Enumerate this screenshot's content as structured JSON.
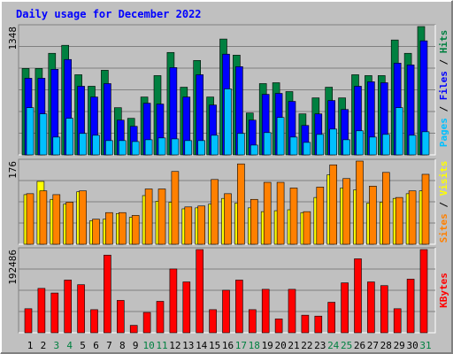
{
  "chart_data": {
    "type": "bar",
    "title": "Daily usage for December 2022",
    "categories": [
      "1",
      "2",
      "3",
      "4",
      "5",
      "6",
      "7",
      "8",
      "9",
      "10",
      "11",
      "12",
      "13",
      "14",
      "15",
      "16",
      "17",
      "18",
      "19",
      "20",
      "21",
      "22",
      "23",
      "24",
      "25",
      "26",
      "27",
      "28",
      "29",
      "30",
      "31"
    ],
    "category_colors": [
      "#000000",
      "#000000",
      "#008040",
      "#008040",
      "#000000",
      "#000000",
      "#000000",
      "#000000",
      "#000000",
      "#008040",
      "#008040",
      "#000000",
      "#000000",
      "#000000",
      "#000000",
      "#000000",
      "#008040",
      "#008040",
      "#000000",
      "#000000",
      "#000000",
      "#000000",
      "#000000",
      "#008040",
      "#008040",
      "#000000",
      "#000000",
      "#000000",
      "#000000",
      "#000000",
      "#008040"
    ],
    "legend_separator": " / ",
    "panels": [
      {
        "ylim": [
          0,
          1348
        ],
        "yticks": [
          1348
        ],
        "series": [
          {
            "name": "Hits",
            "color": "#008040",
            "values": [
              908,
              908,
              1067,
              1151,
              842,
              721,
              889,
              496,
              384,
              608,
              833,
              1076,
              711,
              992,
              608,
              1217,
              1048,
              440,
              749,
              758,
              665,
              431,
              599,
              711,
              599,
              842,
              833,
              833,
              1207,
              1067,
              1348
            ]
          },
          {
            "name": "Files",
            "color": "#0000ff",
            "values": [
              805,
              805,
              899,
              1002,
              721,
              608,
              749,
              365,
              300,
              543,
              534,
              917,
              608,
              842,
              524,
              1058,
              927,
              365,
              636,
              646,
              562,
              309,
              431,
              571,
              477,
              721,
              768,
              758,
              964,
              945,
              1198
            ]
          },
          {
            "name": "Pages",
            "color": "#00c0ff",
            "values": [
              496,
              431,
              187,
              384,
              225,
              206,
              150,
              150,
              140,
              159,
              178,
              168,
              150,
              150,
              206,
              693,
              225,
              103,
              234,
              393,
              187,
              131,
              215,
              271,
              159,
              253,
              187,
              215,
              496,
              206,
              243
            ]
          }
        ]
      },
      {
        "ylim": [
          0,
          176
        ],
        "yticks": [
          176
        ],
        "series": [
          {
            "name": "Visits",
            "color": "#ffff00",
            "values": [
              105,
              133,
              95,
              85,
              111,
              50,
              53,
              65,
              57,
              103,
              91,
              89,
              75,
              77,
              85,
              97,
              87,
              77,
              69,
              71,
              73,
              67,
              99,
              147,
              119,
              115,
              87,
              89,
              97,
              107,
              113
            ]
          },
          {
            "name": "Sites",
            "color": "#ff8000",
            "values": [
              107,
              113,
              105,
              89,
              113,
              53,
              67,
              67,
              61,
              117,
              117,
              154,
              79,
              81,
              137,
              107,
              170,
              95,
              131,
              131,
              119,
              69,
              121,
              168,
              139,
              176,
              123,
              152,
              99,
              113,
              148
            ]
          }
        ]
      },
      {
        "ylim": [
          0,
          192486
        ],
        "yticks": [
          192486
        ],
        "series": [
          {
            "name": "KBytes",
            "color": "#ff0000",
            "values": [
              55614,
              102672,
              91977,
              121923,
              111228,
              53475,
              179676,
              74865,
              17112,
              47058,
              72726,
              147591,
              117645,
              192486,
              53475,
              98394,
              121923,
              53475,
              100533,
              32085,
              100533,
              40641,
              38502,
              70587,
              115506,
              171120,
              117645,
              109089,
              55614,
              124062,
              192486
            ]
          }
        ]
      }
    ]
  }
}
